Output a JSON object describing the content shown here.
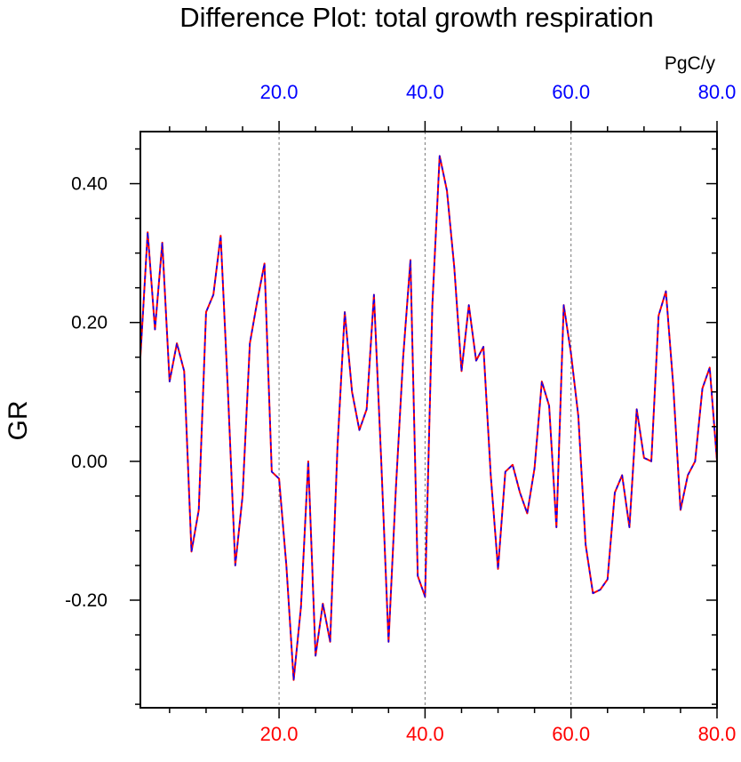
{
  "chart_data": {
    "type": "line",
    "title": "Difference Plot: total growth respiration",
    "units": "PgC/y",
    "ylabel": "GR",
    "xlim": [
      1,
      80
    ],
    "ylim": [
      -0.355,
      0.475
    ],
    "x_ticks": [
      20,
      40,
      60,
      80
    ],
    "x_tick_labels": [
      "20.0",
      "40.0",
      "60.0",
      "80.0"
    ],
    "y_ticks": [
      -0.2,
      0.0,
      0.2,
      0.4
    ],
    "y_tick_labels": [
      "-0.20",
      "0.00",
      "0.20",
      "0.40"
    ],
    "grid": "vertical dashed at major x ticks",
    "colors": {
      "series_a": "#ff0000",
      "series_b": "#0000ff",
      "bottom_axis": "#ff0000",
      "top_axis": "#0000ff",
      "grid": "#777777"
    },
    "series": [
      {
        "name": "series_a",
        "color": "#ff0000",
        "style": "solid",
        "x": [
          1,
          2,
          3,
          4,
          5,
          6,
          7,
          8,
          9,
          10,
          11,
          12,
          13,
          14,
          15,
          16,
          17,
          18,
          19,
          20,
          21,
          22,
          23,
          24,
          25,
          26,
          27,
          28,
          29,
          30,
          31,
          32,
          33,
          34,
          35,
          36,
          37,
          38,
          39,
          40,
          41,
          42,
          43,
          44,
          45,
          46,
          47,
          48,
          49,
          50,
          51,
          52,
          53,
          54,
          55,
          56,
          57,
          58,
          59,
          60,
          61,
          62,
          63,
          64,
          65,
          66,
          67,
          68,
          69,
          70,
          71,
          72,
          73,
          74,
          75,
          76,
          77,
          78,
          79,
          80
        ],
        "values": [
          0.15,
          0.33,
          0.19,
          0.315,
          0.115,
          0.17,
          0.13,
          -0.13,
          -0.07,
          0.215,
          0.24,
          0.325,
          0.1,
          -0.15,
          -0.05,
          0.17,
          0.23,
          0.285,
          -0.015,
          -0.025,
          -0.15,
          -0.315,
          -0.21,
          0.0,
          -0.28,
          -0.205,
          -0.26,
          0.02,
          0.215,
          0.1,
          0.045,
          0.075,
          0.24,
          0.0,
          -0.26,
          -0.04,
          0.15,
          0.29,
          -0.165,
          -0.195,
          0.225,
          0.44,
          0.39,
          0.28,
          0.13,
          0.225,
          0.145,
          0.165,
          -0.02,
          -0.155,
          -0.015,
          -0.005,
          -0.045,
          -0.075,
          -0.01,
          0.115,
          0.08,
          -0.095,
          0.225,
          0.155,
          0.065,
          -0.12,
          -0.19,
          -0.185,
          -0.17,
          -0.045,
          -0.02,
          -0.095,
          0.075,
          0.005,
          0.0,
          0.21,
          0.245,
          0.11,
          -0.07,
          -0.02,
          0.0,
          0.105,
          0.135,
          0.0
        ]
      },
      {
        "name": "series_b",
        "color": "#0000ff",
        "style": "dashed",
        "x": [
          1,
          2,
          3,
          4,
          5,
          6,
          7,
          8,
          9,
          10,
          11,
          12,
          13,
          14,
          15,
          16,
          17,
          18,
          19,
          20,
          21,
          22,
          23,
          24,
          25,
          26,
          27,
          28,
          29,
          30,
          31,
          32,
          33,
          34,
          35,
          36,
          37,
          38,
          39,
          40,
          41,
          42,
          43,
          44,
          45,
          46,
          47,
          48,
          49,
          50,
          51,
          52,
          53,
          54,
          55,
          56,
          57,
          58,
          59,
          60,
          61,
          62,
          63,
          64,
          65,
          66,
          67,
          68,
          69,
          70,
          71,
          72,
          73,
          74,
          75,
          76,
          77,
          78,
          79,
          80
        ],
        "values": [
          0.15,
          0.33,
          0.19,
          0.315,
          0.115,
          0.17,
          0.13,
          -0.13,
          -0.07,
          0.215,
          0.24,
          0.325,
          0.1,
          -0.15,
          -0.05,
          0.17,
          0.23,
          0.285,
          -0.015,
          -0.025,
          -0.15,
          -0.315,
          -0.21,
          0.0,
          -0.28,
          -0.205,
          -0.26,
          0.02,
          0.215,
          0.1,
          0.045,
          0.075,
          0.24,
          0.0,
          -0.26,
          -0.04,
          0.15,
          0.29,
          -0.165,
          -0.195,
          0.225,
          0.44,
          0.39,
          0.28,
          0.13,
          0.225,
          0.145,
          0.165,
          -0.02,
          -0.155,
          -0.015,
          -0.005,
          -0.045,
          -0.075,
          -0.01,
          0.115,
          0.08,
          -0.095,
          0.225,
          0.155,
          0.065,
          -0.12,
          -0.19,
          -0.185,
          -0.17,
          -0.045,
          -0.02,
          -0.095,
          0.075,
          0.005,
          0.0,
          0.21,
          0.245,
          0.11,
          -0.07,
          -0.02,
          0.0,
          0.105,
          0.135,
          0.0
        ]
      }
    ]
  }
}
